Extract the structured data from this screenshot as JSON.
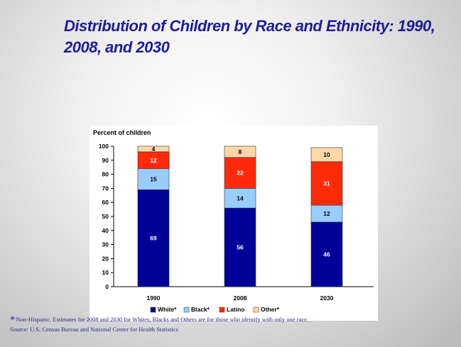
{
  "title": "Distribution of Children by Race and Ethnicity: 1990, 2008, and 2030",
  "footnote": {
    "marker": "*",
    "note": "Non-Hispanic. Estimates for 2008 and 2030 for Whites, Blacks and Others are for those who identify with only one race.",
    "source": "Source: U.S. Census Bureau and National Center for Health Statistics"
  },
  "chart_data": {
    "type": "bar",
    "stacked": true,
    "ylabel": "Percent of children",
    "ylim": [
      0,
      100
    ],
    "yticks": [
      "0",
      "10",
      "20",
      "30",
      "40",
      "50",
      "60",
      "70",
      "80",
      "90",
      "100"
    ],
    "categories": [
      "1990",
      "2008",
      "2030"
    ],
    "grid": false,
    "legend_position": "bottom",
    "series": [
      {
        "name": "White*",
        "color": "#000099",
        "label_color": "#ffffff",
        "values": [
          69,
          56,
          46
        ],
        "labels": [
          "69",
          "56",
          "46"
        ]
      },
      {
        "name": "Black*",
        "color": "#99ccff",
        "label_color": "#000000",
        "values": [
          15,
          14,
          12
        ],
        "labels": [
          "15",
          "14",
          "12"
        ]
      },
      {
        "name": "Latino",
        "color": "#ff2a0a",
        "label_color": "#ffffff",
        "values": [
          12,
          22,
          31
        ],
        "labels": [
          "12",
          "22",
          "31"
        ]
      },
      {
        "name": "Other*",
        "color": "#fbd7a8",
        "label_color": "#000000",
        "values": [
          4,
          8,
          10
        ],
        "labels": [
          "4",
          "8",
          "10"
        ]
      }
    ]
  }
}
